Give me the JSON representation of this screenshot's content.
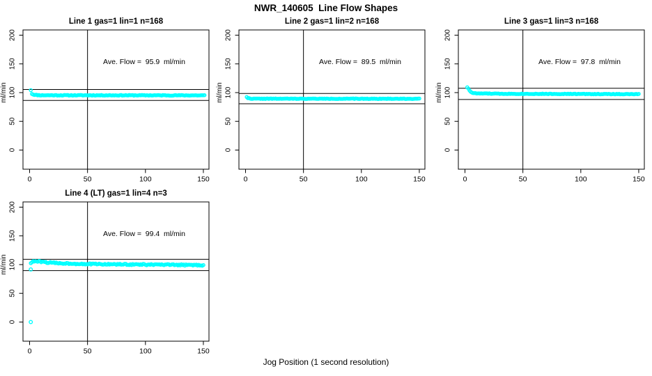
{
  "chart_data": {
    "type": "scatter",
    "suptitle": "NWR_140605  Line Flow Shapes",
    "xlabel": "Jog Position (1 second resolution)",
    "ylabel": "ml/min",
    "x_ticks": [
      0,
      50,
      100,
      150
    ],
    "y_ticks": [
      0,
      50,
      100,
      150,
      200
    ],
    "xlim": [
      -6,
      156
    ],
    "ylim": [
      -33,
      209
    ],
    "vline_x": 50,
    "point_color": "#00ffff",
    "line_color": "#000000",
    "plots": [
      {
        "title": "Line 1 gas=1 lin=1 n=168",
        "annotation": "Ave. Flow =  95.9  ml/min",
        "ave_flow": 95.9,
        "hlines": [
          105.5,
          86.3
        ],
        "x_start": 1,
        "x_end": 151,
        "noise": 0.6,
        "profile": [
          [
            1,
            104.5
          ],
          [
            2,
            98.0
          ],
          [
            3,
            96.8
          ],
          [
            5,
            95.9
          ],
          [
            10,
            95.4
          ],
          [
            151,
            95.2
          ]
        ],
        "outliers": []
      },
      {
        "title": "Line 2 gas=1 lin=2 n=168",
        "annotation": "Ave. Flow =  89.5  ml/min",
        "ave_flow": 89.5,
        "hlines": [
          98.5,
          80.6
        ],
        "x_start": 1,
        "x_end": 150,
        "noise": 0.45,
        "profile": [
          [
            1,
            92.5
          ],
          [
            2,
            90.5
          ],
          [
            4,
            89.6
          ],
          [
            8,
            89.4
          ],
          [
            150,
            89.3
          ]
        ],
        "outliers": []
      },
      {
        "title": "Line 3 gas=1 lin=3 n=168",
        "annotation": "Ave. Flow =  97.8  ml/min",
        "ave_flow": 97.8,
        "hlines": [
          107.6,
          88.0
        ],
        "x_start": 2,
        "x_end": 150,
        "noise": 0.5,
        "profile": [
          [
            2,
            109.5
          ],
          [
            3,
            107.0
          ],
          [
            4,
            103.5
          ],
          [
            5,
            101.0
          ],
          [
            7,
            99.3
          ],
          [
            10,
            98.6
          ],
          [
            30,
            98.0
          ],
          [
            150,
            97.3
          ]
        ],
        "outliers": []
      },
      {
        "title": "Line 4 (LT) gas=1 lin=4 n=3",
        "annotation": "Ave. Flow =  99.4  ml/min",
        "ave_flow": 99.4,
        "hlines": [
          109.3,
          89.5
        ],
        "x_start": 1,
        "x_end": 150,
        "noise": 1.1,
        "profile": [
          [
            1,
            103.0
          ],
          [
            2,
            104.5
          ],
          [
            4,
            105.7
          ],
          [
            8,
            105.3
          ],
          [
            15,
            103.8
          ],
          [
            25,
            102.5
          ],
          [
            40,
            101.5
          ],
          [
            60,
            100.7
          ],
          [
            90,
            100.2
          ],
          [
            120,
            99.6
          ],
          [
            150,
            99.0
          ]
        ],
        "outliers": [
          [
            1,
            0
          ],
          [
            1,
            91.5
          ]
        ]
      }
    ]
  }
}
